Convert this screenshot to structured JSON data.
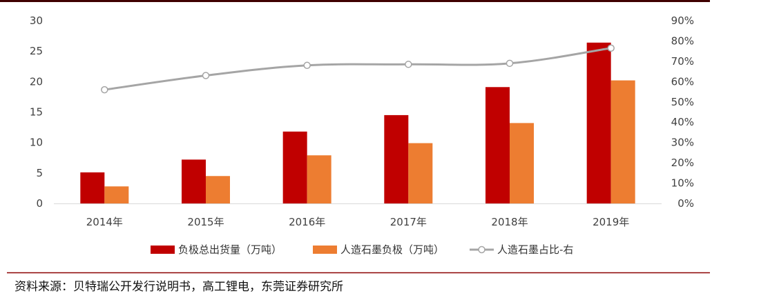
{
  "chart_data": {
    "type": "bar",
    "categories": [
      "2014年",
      "2015年",
      "2016年",
      "2017年",
      "2018年",
      "2019年"
    ],
    "series": [
      {
        "name": "负极总出货量（万吨）",
        "kind": "bar",
        "axis": "left",
        "color": "#C00000",
        "values": [
          5.1,
          7.2,
          11.8,
          14.5,
          19.1,
          26.4
        ]
      },
      {
        "name": "人造石墨负极（万吨）",
        "kind": "bar",
        "axis": "left",
        "color": "#ED7D31",
        "values": [
          2.8,
          4.5,
          7.9,
          9.9,
          13.2,
          20.2
        ]
      },
      {
        "name": "人造石墨占比-右",
        "kind": "line",
        "axis": "right",
        "color": "#A5A5A5",
        "values": [
          0.56,
          0.63,
          0.68,
          0.685,
          0.69,
          0.765
        ]
      }
    ],
    "ylim_left": [
      0,
      30
    ],
    "yticks_left": [
      "0",
      "5",
      "10",
      "15",
      "20",
      "25",
      "30"
    ],
    "ylim_right": [
      0,
      0.9
    ],
    "yticks_right": [
      "0%",
      "10%",
      "20%",
      "30%",
      "40%",
      "50%",
      "60%",
      "70%",
      "80%",
      "90%"
    ],
    "legend_position": "bottom",
    "grid": false
  },
  "source": "资料来源：贝特瑞公开发行说明书，高工锂电，东莞证券研究所",
  "colors": {
    "top_rule": "#3F0000",
    "bottom_rule": "#8B0000",
    "axis": "#D9D9D9"
  }
}
